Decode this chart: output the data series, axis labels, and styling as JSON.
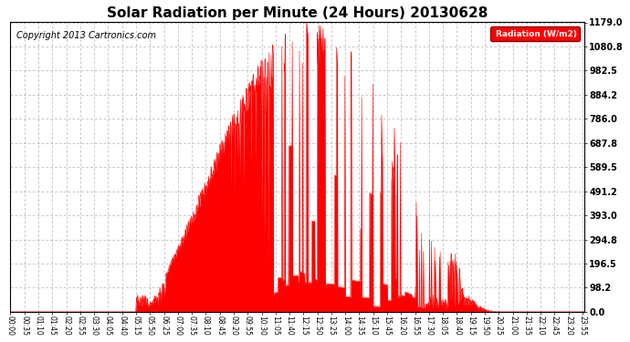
{
  "title": "Solar Radiation per Minute (24 Hours) 20130628",
  "copyright": "Copyright 2013 Cartronics.com",
  "legend_label": "Radiation (W/m2)",
  "yticks": [
    0.0,
    98.2,
    196.5,
    294.8,
    393.0,
    491.2,
    589.5,
    687.8,
    786.0,
    884.2,
    982.5,
    1080.8,
    1179.0
  ],
  "ymax": 1179.0,
  "ymin": 0.0,
  "fill_color": "#ff0000",
  "line_color": "#ff0000",
  "bg_color": "#ffffff",
  "grid_color": "#b0b0b0",
  "title_fontsize": 11,
  "copyright_fontsize": 7,
  "tick_label_rotation": -90,
  "xtick_interval_minutes": 35,
  "total_minutes": 1440
}
